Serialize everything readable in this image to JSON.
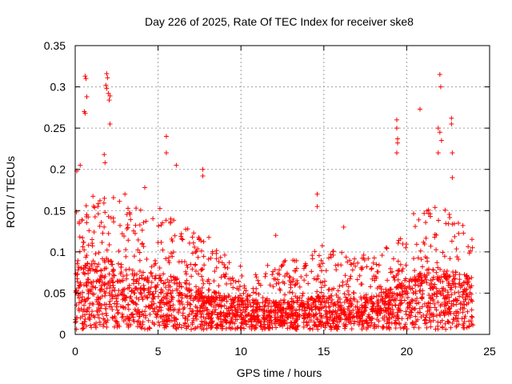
{
  "chart_data": {
    "type": "scatter",
    "title": "Day 226 of 2025, Rate Of TEC Index for receiver ske8",
    "xlabel": "GPS time / hours",
    "ylabel": "ROTI / TECUs",
    "xlim": [
      0,
      25
    ],
    "ylim": [
      0,
      0.35
    ],
    "xticks": [
      "0",
      "5",
      "10",
      "15",
      "20",
      "25"
    ],
    "yticks": [
      "0",
      "0.05",
      "0.1",
      "0.15",
      "0.2",
      "0.25",
      "0.3",
      "0.35"
    ],
    "grid": true,
    "marker": "plus",
    "color": "#ff0000",
    "series": [
      {
        "name": "ROTI",
        "notable_points": [
          [
            0.6,
            0.313
          ],
          [
            0.65,
            0.31
          ],
          [
            0.7,
            0.288
          ],
          [
            0.55,
            0.27
          ],
          [
            0.6,
            0.268
          ],
          [
            1.9,
            0.316
          ],
          [
            1.95,
            0.311
          ],
          [
            1.85,
            0.302
          ],
          [
            1.9,
            0.298
          ],
          [
            2.0,
            0.292
          ],
          [
            2.1,
            0.289
          ],
          [
            2.05,
            0.284
          ],
          [
            2.1,
            0.255
          ],
          [
            1.75,
            0.218
          ],
          [
            1.8,
            0.208
          ],
          [
            5.5,
            0.24
          ],
          [
            5.5,
            0.22
          ],
          [
            6.1,
            0.205
          ],
          [
            7.7,
            0.2
          ],
          [
            7.7,
            0.192
          ],
          [
            19.4,
            0.26
          ],
          [
            19.4,
            0.25
          ],
          [
            19.45,
            0.237
          ],
          [
            19.45,
            0.232
          ],
          [
            19.4,
            0.22
          ],
          [
            20.8,
            0.273
          ],
          [
            22.0,
            0.315
          ],
          [
            22.05,
            0.3
          ],
          [
            21.9,
            0.25
          ],
          [
            22.0,
            0.245
          ],
          [
            22.1,
            0.235
          ],
          [
            21.9,
            0.22
          ],
          [
            22.7,
            0.262
          ],
          [
            22.7,
            0.255
          ],
          [
            22.75,
            0.22
          ],
          [
            22.75,
            0.19
          ],
          [
            0.1,
            0.198
          ],
          [
            0.3,
            0.205
          ],
          [
            3.0,
            0.17
          ],
          [
            4.2,
            0.178
          ],
          [
            14.6,
            0.17
          ],
          [
            14.6,
            0.155
          ],
          [
            12.1,
            0.12
          ],
          [
            16.2,
            0.13
          ]
        ],
        "envelope": {
          "hours": [
            0,
            1,
            2,
            3,
            4,
            5,
            6,
            7,
            8,
            9,
            10,
            11,
            12,
            13,
            14,
            15,
            16,
            17,
            18,
            19,
            20,
            21,
            22,
            23,
            24
          ],
          "typical_max_roti": [
            0.15,
            0.16,
            0.17,
            0.16,
            0.15,
            0.15,
            0.14,
            0.13,
            0.11,
            0.1,
            0.08,
            0.07,
            0.09,
            0.09,
            0.1,
            0.11,
            0.1,
            0.09,
            0.1,
            0.12,
            0.13,
            0.15,
            0.16,
            0.14,
            0.12
          ],
          "typical_mean_roti": [
            0.05,
            0.06,
            0.06,
            0.055,
            0.05,
            0.05,
            0.045,
            0.04,
            0.035,
            0.03,
            0.028,
            0.025,
            0.025,
            0.026,
            0.028,
            0.03,
            0.028,
            0.027,
            0.03,
            0.035,
            0.045,
            0.05,
            0.055,
            0.05,
            0.045
          ]
        }
      }
    ]
  }
}
